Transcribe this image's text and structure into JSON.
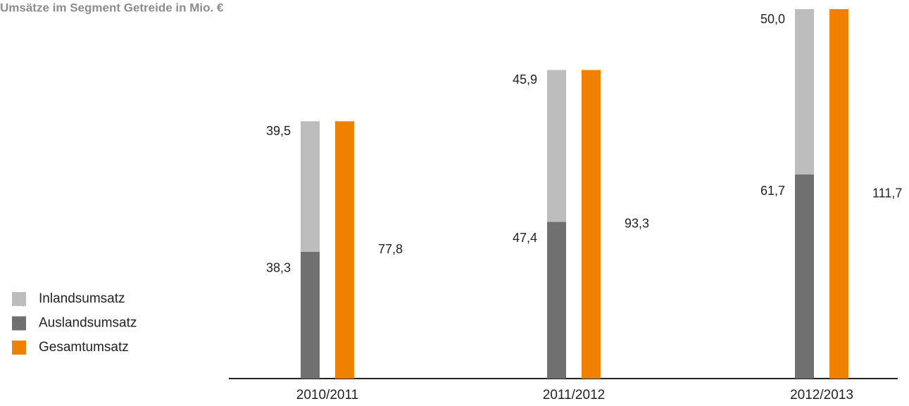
{
  "chart_data": {
    "type": "bar",
    "stacked": true,
    "title": "Umsätze im Segment Getreide in Mio. €",
    "categories": [
      "2010/2011",
      "2011/2012",
      "2012/2013"
    ],
    "series": [
      {
        "name": "Inlandsumsatz",
        "color": "#bdbdbd",
        "stack": "a",
        "values": [
          39.5,
          45.9,
          50.0
        ],
        "value_labels": [
          "39,5",
          "45,9",
          "50,0"
        ]
      },
      {
        "name": "Auslandsumsatz",
        "color": "#707070",
        "stack": "a",
        "values": [
          38.3,
          47.4,
          61.7
        ],
        "value_labels": [
          "38,3",
          "47,4",
          "61,7"
        ]
      },
      {
        "name": "Gesamtumsatz",
        "color": "#f08000",
        "stack": "b",
        "values": [
          77.8,
          93.3,
          111.7
        ],
        "value_labels": [
          "77,8",
          "93,3",
          "111,7"
        ]
      }
    ]
  }
}
